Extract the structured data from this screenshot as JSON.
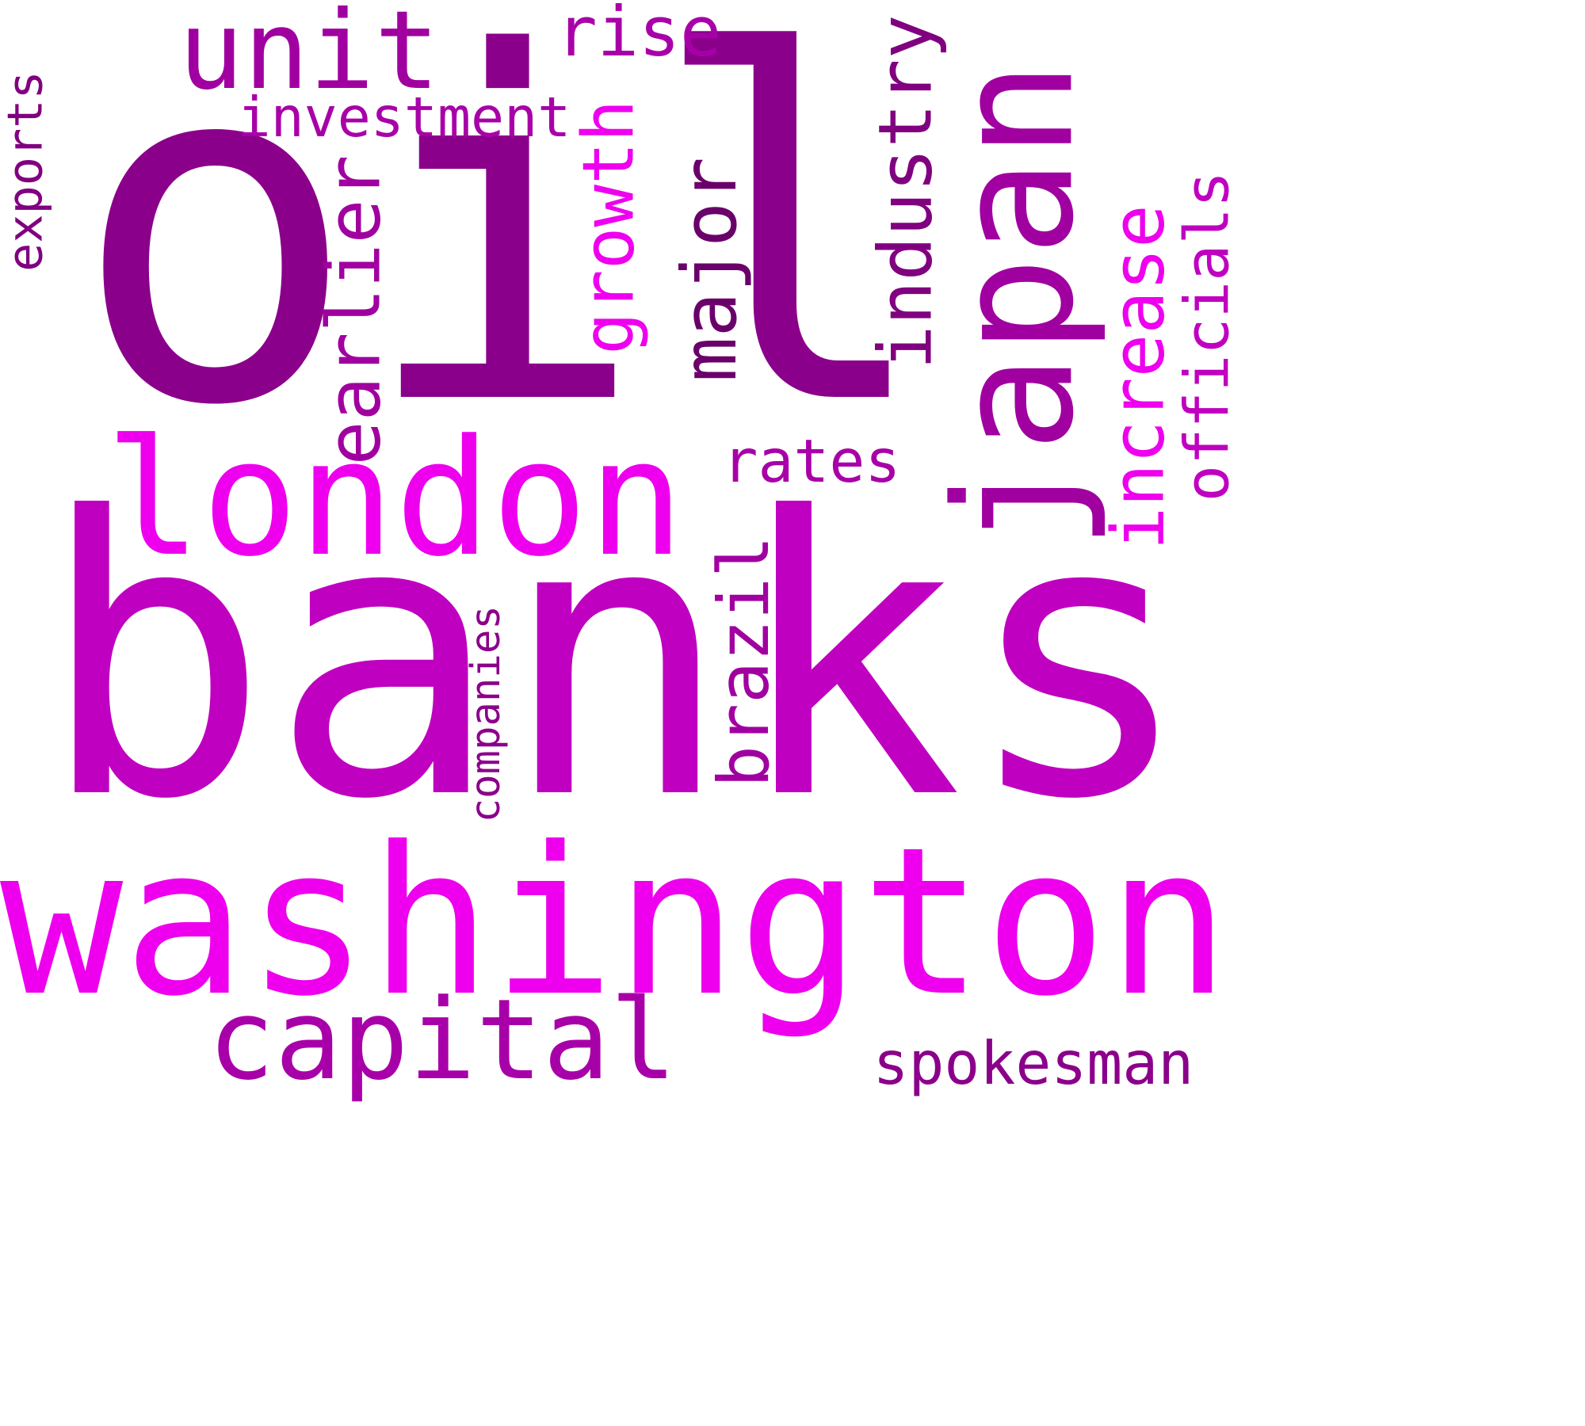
{
  "wordcloud": {
    "words": [
      {
        "text": "oil",
        "color": "#8b008b"
      },
      {
        "text": "banks",
        "color": "#c000c0"
      },
      {
        "text": "washington",
        "color": "#ee00ee"
      },
      {
        "text": "japan",
        "color": "#a000a0"
      },
      {
        "text": "london",
        "color": "#ee00ee"
      },
      {
        "text": "unit",
        "color": "#a000a0"
      },
      {
        "text": "capital",
        "color": "#a800a8"
      },
      {
        "text": "rise",
        "color": "#a800a8"
      },
      {
        "text": "investment",
        "color": "#a800a8"
      },
      {
        "text": "exports",
        "color": "#800080"
      },
      {
        "text": "earlier",
        "color": "#a000a0"
      },
      {
        "text": "growth",
        "color": "#ee00ee"
      },
      {
        "text": "major",
        "color": "#6a006a"
      },
      {
        "text": "industry",
        "color": "#800080"
      },
      {
        "text": "rates",
        "color": "#a800a8"
      },
      {
        "text": "increase",
        "color": "#ee00ee"
      },
      {
        "text": "officials",
        "color": "#c000c0"
      },
      {
        "text": "brazil",
        "color": "#a000a0"
      },
      {
        "text": "companies",
        "color": "#8b008b"
      },
      {
        "text": "spokesman",
        "color": "#8b008b"
      }
    ]
  }
}
